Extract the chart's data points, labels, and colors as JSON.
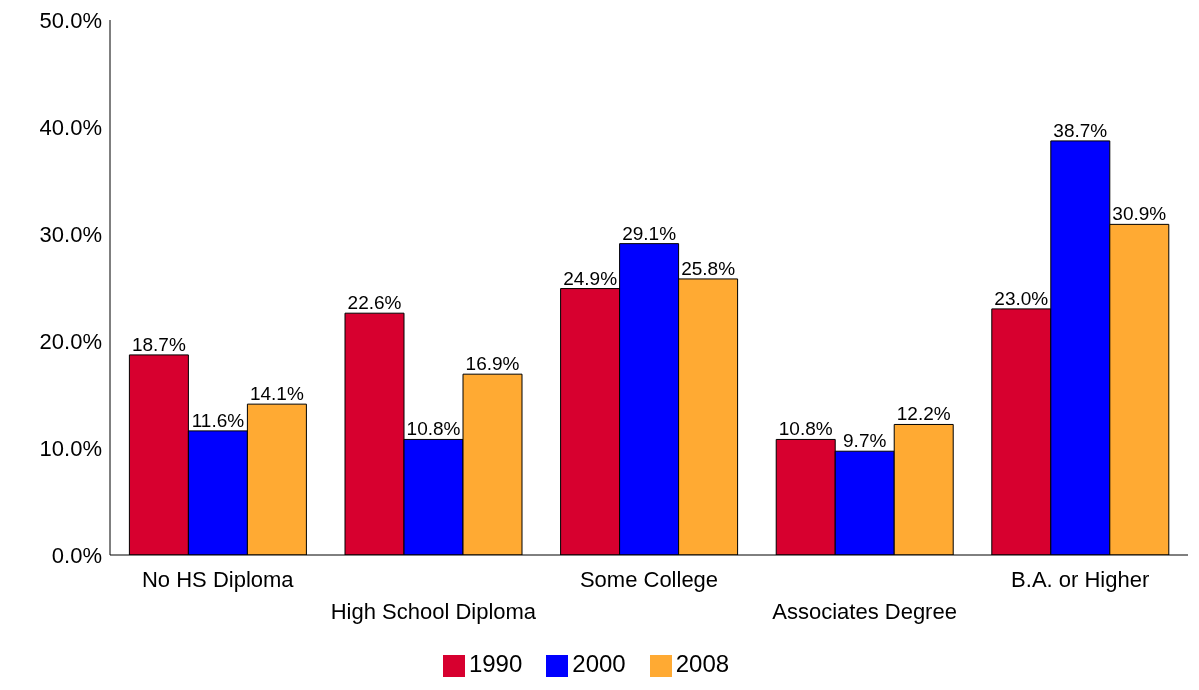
{
  "chart_data": {
    "type": "bar",
    "categories": [
      "No HS Diploma",
      "High School Diploma",
      "Some College",
      "Associates Degree",
      "B.A. or Higher"
    ],
    "series": [
      {
        "name": "1990",
        "color": "#d7002f",
        "values": [
          18.7,
          22.6,
          24.9,
          10.8,
          23.0
        ],
        "value_labels": [
          "18.7%",
          "22.6%",
          "24.9%",
          "10.8%",
          "23.0%"
        ]
      },
      {
        "name": "2000",
        "color": "#0000ff",
        "values": [
          11.6,
          10.8,
          29.1,
          9.7,
          38.7
        ],
        "value_labels": [
          "11.6%",
          "10.8%",
          "29.1%",
          "9.7%",
          "38.7%"
        ]
      },
      {
        "name": "2008",
        "color": "#ffaa33",
        "values": [
          14.1,
          16.9,
          25.8,
          12.2,
          30.9
        ],
        "value_labels": [
          "14.1%",
          "16.9%",
          "25.8%",
          "12.2%",
          "30.9%"
        ]
      }
    ],
    "ylim": [
      0,
      50
    ],
    "yticks": [
      {
        "value": 0,
        "label": "0.0%"
      },
      {
        "value": 10,
        "label": "10.0%"
      },
      {
        "value": 20,
        "label": "20.0%"
      },
      {
        "value": 30,
        "label": "30.0%"
      },
      {
        "value": 40,
        "label": "40.0%"
      },
      {
        "value": 50,
        "label": "50.0%"
      }
    ],
    "grid": false,
    "legend": "bottom"
  }
}
